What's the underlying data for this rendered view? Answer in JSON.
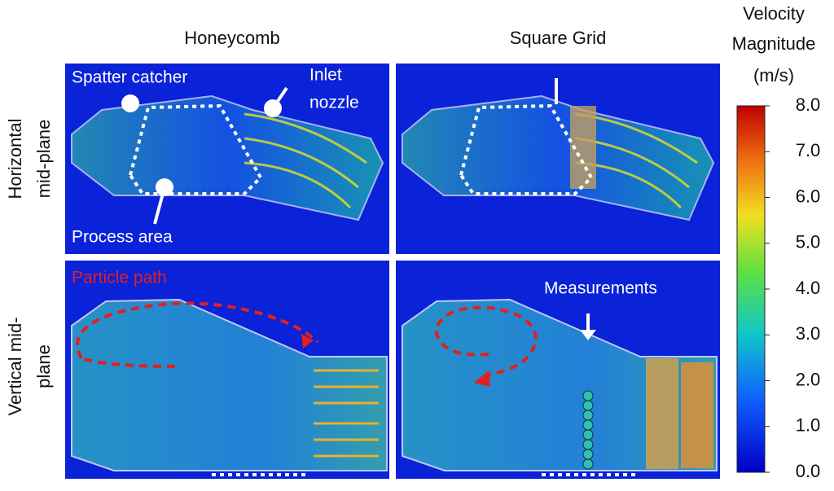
{
  "column_titles": [
    "Honeycomb",
    "Square Grid"
  ],
  "row_titles": [
    [
      "Horizontal",
      "mid-plane"
    ],
    [
      "Vertical mid-",
      "plane"
    ]
  ],
  "annotations": {
    "spatter_catcher": "Spatter catcher",
    "inlet_nozzle": [
      "Inlet",
      "nozzle"
    ],
    "process_area": "Process area",
    "particle_path": "Particle path",
    "measurements": "Measurements"
  },
  "colorbar": {
    "title": [
      "Velocity",
      "Magnitude",
      "(m/s)"
    ],
    "lim": [
      0,
      8
    ],
    "ticks": [
      {
        "value": 0,
        "label": "0.0"
      },
      {
        "value": 1,
        "label": "1.0"
      },
      {
        "value": 2,
        "label": "2.0"
      },
      {
        "value": 3,
        "label": "3.0"
      },
      {
        "value": 4,
        "label": "4.0"
      },
      {
        "value": 5,
        "label": "5.0"
      },
      {
        "value": 6,
        "label": "6.0"
      },
      {
        "value": 7,
        "label": "7.0"
      },
      {
        "value": 8,
        "label": "8.0"
      }
    ]
  }
}
